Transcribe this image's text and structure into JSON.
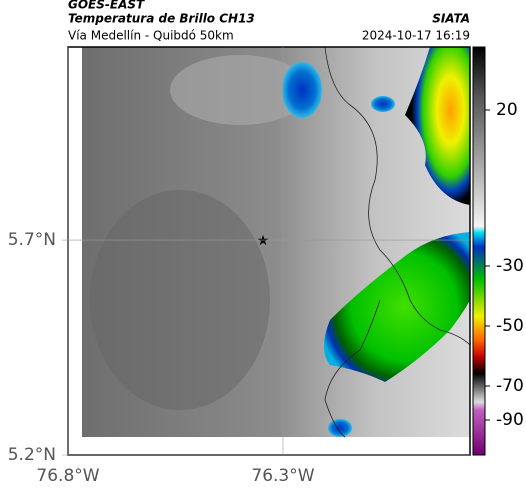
{
  "header": {
    "source": "GOES-EAST",
    "title": "Temperatura de Brillo CH13",
    "agency": "SIATA",
    "subtitle": "Vía Medellín - Quibdó 50km",
    "datetime": "2024-10-17 16:19"
  },
  "map": {
    "xlim": [
      -76.8,
      -75.865
    ],
    "ylim": [
      5.2,
      6.149
    ],
    "xticks": [
      {
        "value": -76.8,
        "label": "76.8°W"
      },
      {
        "value": -76.3,
        "label": "76.3°W"
      }
    ],
    "yticks": [
      {
        "value": 5.2,
        "label": "5.2°N"
      },
      {
        "value": 5.7,
        "label": "5.7°N"
      }
    ]
  },
  "colorbar": {
    "ticks": [
      20,
      -30,
      -50,
      -70,
      -90
    ]
  }
}
